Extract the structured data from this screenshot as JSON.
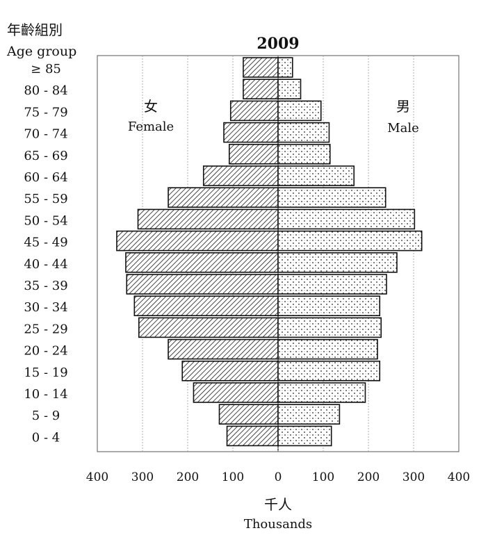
{
  "chart_data": {
    "type": "bar",
    "title": "2009",
    "y_header_zh": "年齡組別",
    "y_header_en": "Age group",
    "female_label_zh": "女",
    "female_label_en": "Female",
    "male_label_zh": "男",
    "male_label_en": "Male",
    "xlabel_zh": "千人",
    "xlabel_en": "Thousands",
    "xlim": [
      -400,
      400
    ],
    "x_ticks": [
      "400",
      "300",
      "200",
      "100",
      "0",
      "100",
      "200",
      "300",
      "400"
    ],
    "categories": [
      "≥ 85",
      "80 - 84",
      "75 - 79",
      "70 - 74",
      "65 - 69",
      "60 - 64",
      "55 - 59",
      "50 - 54",
      "45 - 49",
      "40 - 44",
      "35 - 39",
      "30 - 34",
      "25 - 29",
      "20 - 24",
      "15 - 19",
      "10 - 14",
      "5 - 9",
      "0 - 4"
    ],
    "series": [
      {
        "name": "Female",
        "values": [
          77,
          77,
          105,
          120,
          108,
          165,
          243,
          310,
          357,
          337,
          335,
          318,
          308,
          243,
          212,
          187,
          130,
          113
        ]
      },
      {
        "name": "Male",
        "values": [
          32,
          50,
          95,
          113,
          115,
          168,
          238,
          302,
          318,
          263,
          240,
          225,
          228,
          220,
          225,
          193,
          136,
          118
        ]
      }
    ],
    "grid": true,
    "colors": {
      "female_pattern": "#1a1a1a",
      "male_pattern": "#1a1a1a",
      "grid": "#9a9a9a"
    }
  }
}
